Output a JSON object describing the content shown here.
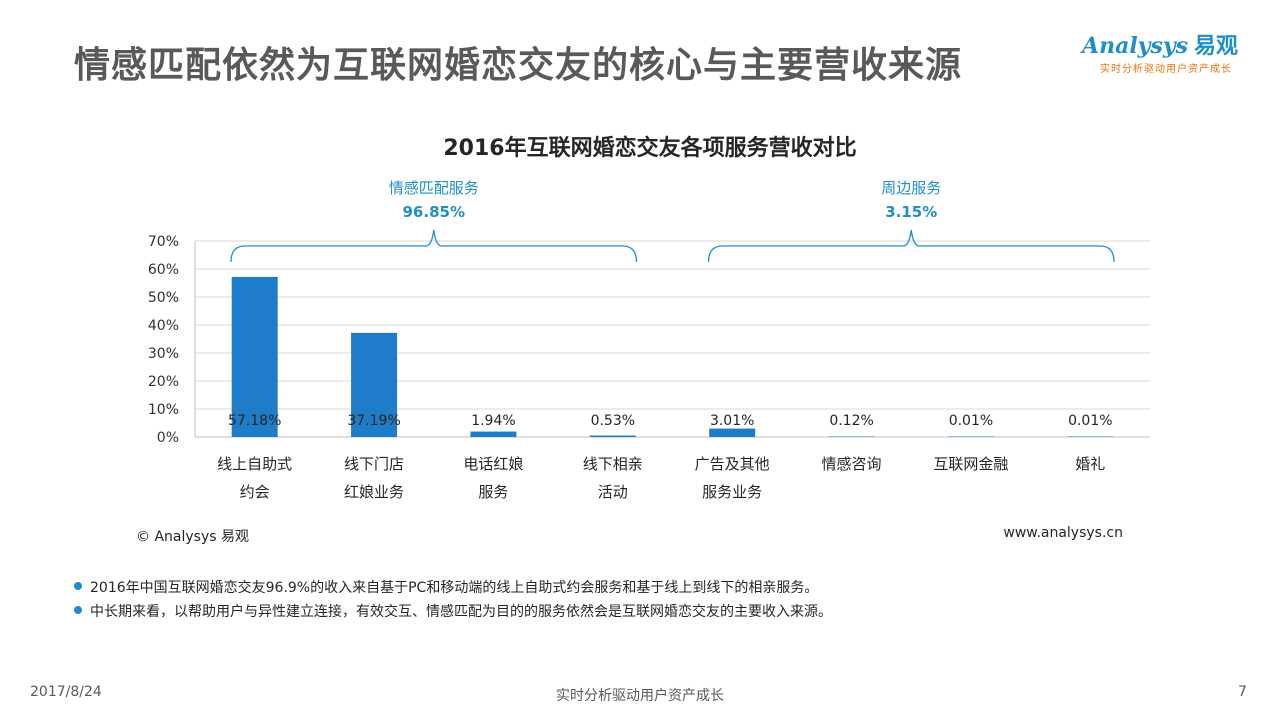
{
  "slide": {
    "title": "情感匹配依然为互联网婚恋交友的核心与主要营收来源",
    "page_number": "7",
    "date": "2017/8/24",
    "slogan": "实时分析驱动用户资产成长"
  },
  "logo": {
    "brand": "Analysys",
    "brand_cn": "易观",
    "tagline": "实时分析驱动用户资产成长"
  },
  "source": {
    "copyright": "© Analysys 易观",
    "website": "www.analysys.cn"
  },
  "notes": [
    "2016年中国互联网婚恋交友96.9%的收入来自基于PC和移动端的线上自助式约会服务和基于线上到线下的相亲服务。",
    "中长期来看，以帮助用户与异性建立连接，有效交互、情感匹配为目的的服务依然会是互联网婚恋交友的主要收入来源。"
  ],
  "colors": {
    "bar": "#1f7cc8",
    "bracket": "#1f8fcc",
    "group_label": "#1f8fcc",
    "accent": "#e8740c"
  },
  "chart_data": {
    "type": "bar",
    "title": "2016年互联网婚恋交友各项服务营收对比",
    "categories": [
      [
        "线上自助式",
        "约会"
      ],
      [
        "线下门店",
        "红娘业务"
      ],
      [
        "电话红娘",
        "服务"
      ],
      [
        "线下相亲",
        "活动"
      ],
      [
        "广告及其他",
        "服务业务"
      ],
      [
        "情感咨询"
      ],
      [
        "互联网金融"
      ],
      [
        "婚礼"
      ]
    ],
    "values": [
      57.18,
      37.19,
      1.94,
      0.53,
      3.01,
      0.12,
      0.01,
      0.01
    ],
    "value_labels": [
      "57.18%",
      "37.19%",
      "1.94%",
      "0.53%",
      "3.01%",
      "0.12%",
      "0.01%",
      "0.01%"
    ],
    "yticks": [
      "0%",
      "10%",
      "20%",
      "30%",
      "40%",
      "50%",
      "60%",
      "70%"
    ],
    "ylim": [
      0,
      70
    ],
    "grid": true,
    "groups": [
      {
        "name": "情感匹配服务",
        "value": "96.85%",
        "start": 0,
        "end": 3
      },
      {
        "name": "周边服务",
        "value": "3.15%",
        "start": 4,
        "end": 7
      }
    ]
  }
}
